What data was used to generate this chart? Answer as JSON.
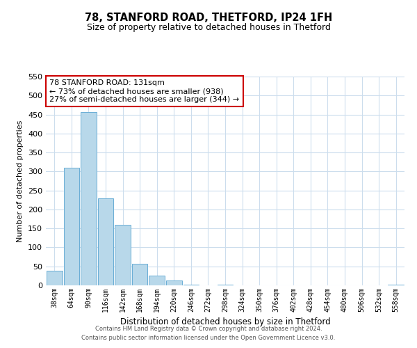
{
  "title": "78, STANFORD ROAD, THETFORD, IP24 1FH",
  "subtitle": "Size of property relative to detached houses in Thetford",
  "xlabel": "Distribution of detached houses by size in Thetford",
  "ylabel": "Number of detached properties",
  "bar_labels": [
    "38sqm",
    "64sqm",
    "90sqm",
    "116sqm",
    "142sqm",
    "168sqm",
    "194sqm",
    "220sqm",
    "246sqm",
    "272sqm",
    "298sqm",
    "324sqm",
    "350sqm",
    "376sqm",
    "402sqm",
    "428sqm",
    "454sqm",
    "480sqm",
    "506sqm",
    "532sqm",
    "558sqm"
  ],
  "bar_values": [
    38,
    310,
    457,
    229,
    160,
    57,
    25,
    12,
    2,
    0,
    2,
    0,
    0,
    0,
    0,
    0,
    0,
    0,
    0,
    0,
    2
  ],
  "bar_color": "#b8d8ea",
  "bar_edge_color": "#6aaed6",
  "ylim": [
    0,
    550
  ],
  "yticks": [
    0,
    50,
    100,
    150,
    200,
    250,
    300,
    350,
    400,
    450,
    500,
    550
  ],
  "annotation_title": "78 STANFORD ROAD: 131sqm",
  "annotation_line1": "← 73% of detached houses are smaller (938)",
  "annotation_line2": "27% of semi-detached houses are larger (344) →",
  "annotation_box_color": "#ffffff",
  "annotation_box_edge": "#cc0000",
  "footer_line1": "Contains HM Land Registry data © Crown copyright and database right 2024.",
  "footer_line2": "Contains public sector information licensed under the Open Government Licence v3.0.",
  "background_color": "#ffffff",
  "grid_color": "#ccdded"
}
